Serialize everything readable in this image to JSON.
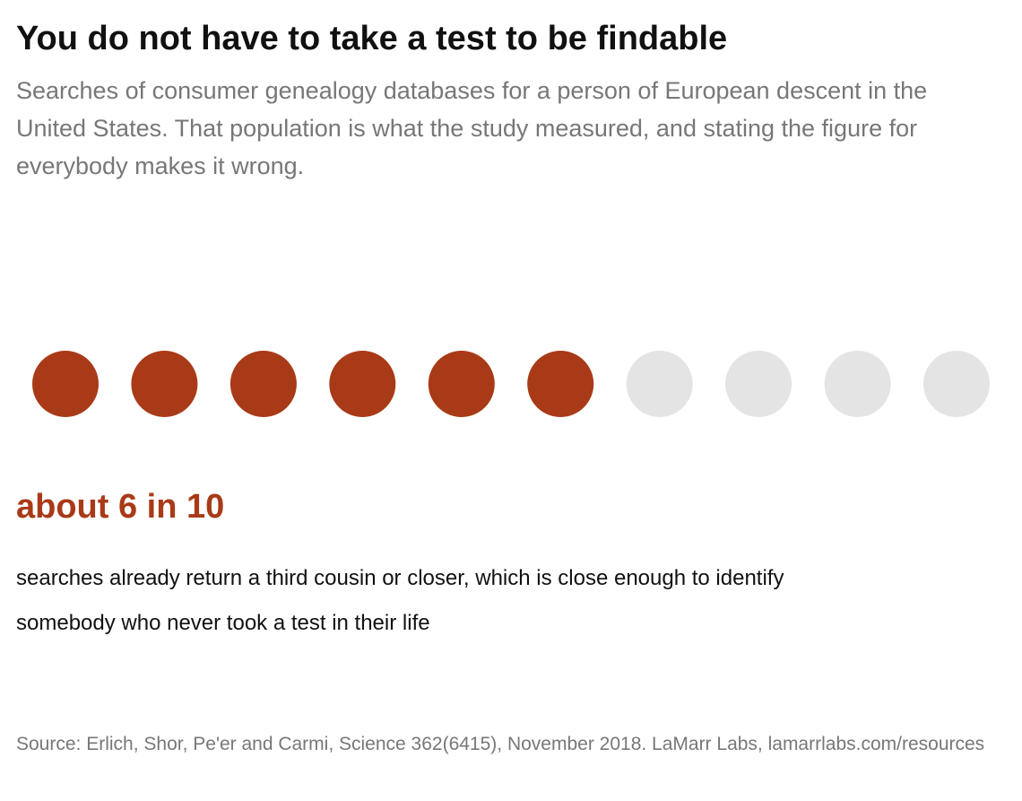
{
  "header": {
    "title": "You do not have to take a test to be findable",
    "subtitle": "Searches of consumer genealogy databases for a person of European descent in the United States. That population is what the study measured, and stating the figure for everybody makes it wrong."
  },
  "chart_data": {
    "type": "waffle",
    "total": 10,
    "filled": 6,
    "colors": {
      "filled": "#a93a17",
      "empty": "#e4e4e4"
    }
  },
  "callout": {
    "headline": "about 6 in 10",
    "note": "searches already return a third cousin or closer, which is close enough to identify somebody who never took a test in their life"
  },
  "footer": {
    "source": "Source: Erlich, Shor, Pe'er and Carmi, Science 362(6415), November 2018. LaMarr Labs, lamarrlabs.com/resources"
  }
}
